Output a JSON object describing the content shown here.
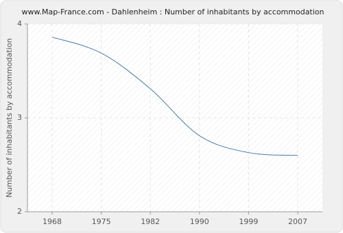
{
  "chart_data": {
    "type": "line",
    "title": "www.Map-France.com - Dahlenheim : Number of inhabitants by accommodation",
    "y_label": "Number of inhabitants by accommodation",
    "categories": [
      "1968",
      "1975",
      "1982",
      "1990",
      "1999",
      "2007"
    ],
    "series": [
      {
        "name": "Number of inhabitants by accommodation",
        "color": "#4a7aa8",
        "values": [
          3.86,
          3.69,
          3.31,
          2.81,
          2.63,
          2.6
        ]
      }
    ],
    "ylim": [
      2,
      4
    ],
    "yticks": [
      2,
      3,
      4
    ],
    "grid": true
  }
}
